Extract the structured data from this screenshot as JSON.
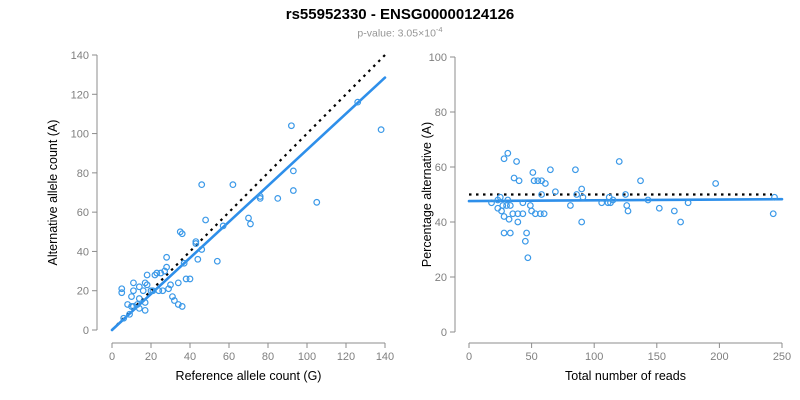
{
  "header": {
    "title": "rs55952330 - ENSG00000124126",
    "subtitle_base": "p-value: 3.05×10",
    "subtitle_exponent": "-4"
  },
  "colors": {
    "point": "#3B99E8",
    "fit_line": "#2E8FEA",
    "reference_line": "#000000",
    "axis": "#8C8C8C",
    "tick_label": "#7F7F7F",
    "axis_label": "#000000",
    "subtitle": "#969696"
  },
  "chart_data": [
    {
      "type": "scatter",
      "panel": "left",
      "xlabel": "Reference allele count (G)",
      "ylabel": "Alternative allele count (A)",
      "xlim": [
        0,
        140
      ],
      "ylim": [
        0,
        140
      ],
      "xticks": [
        0,
        20,
        40,
        60,
        80,
        100,
        120,
        140
      ],
      "yticks": [
        0,
        20,
        40,
        60,
        80,
        100,
        120,
        140
      ],
      "grid": false,
      "identity_line": {
        "style": "dotted",
        "x": [
          0,
          140
        ],
        "y": [
          0,
          140
        ]
      },
      "fit_line": {
        "style": "solid",
        "x": [
          0,
          140
        ],
        "y": [
          0,
          128.5
        ]
      },
      "points": [
        [
          5,
          21
        ],
        [
          5,
          19
        ],
        [
          11,
          24
        ],
        [
          14,
          22
        ],
        [
          11,
          20
        ],
        [
          16,
          20
        ],
        [
          10,
          17
        ],
        [
          14,
          16
        ],
        [
          17,
          14
        ],
        [
          13,
          13
        ],
        [
          8,
          13
        ],
        [
          11,
          12
        ],
        [
          14,
          11
        ],
        [
          17,
          10
        ],
        [
          10,
          12
        ],
        [
          9,
          8
        ],
        [
          6,
          6
        ],
        [
          28,
          37
        ],
        [
          44,
          36
        ],
        [
          54,
          35
        ],
        [
          37,
          34
        ],
        [
          28,
          32
        ],
        [
          27,
          30
        ],
        [
          23,
          29
        ],
        [
          25,
          29
        ],
        [
          22,
          28
        ],
        [
          18,
          28
        ],
        [
          38,
          26
        ],
        [
          40,
          26
        ],
        [
          34,
          24
        ],
        [
          17,
          24
        ],
        [
          18,
          23
        ],
        [
          30,
          23
        ],
        [
          20,
          20
        ],
        [
          21,
          20
        ],
        [
          24,
          20
        ],
        [
          26,
          20
        ],
        [
          29,
          21
        ],
        [
          31,
          17
        ],
        [
          32,
          15
        ],
        [
          34,
          13
        ],
        [
          36,
          12
        ],
        [
          35,
          50
        ],
        [
          36,
          49
        ],
        [
          43,
          45
        ],
        [
          43,
          44
        ],
        [
          46,
          41
        ],
        [
          48,
          56
        ],
        [
          57,
          53
        ],
        [
          46,
          74
        ],
        [
          62,
          74
        ],
        [
          70,
          57
        ],
        [
          71,
          54
        ],
        [
          76,
          68
        ],
        [
          76,
          67
        ],
        [
          85,
          67
        ],
        [
          93,
          81
        ],
        [
          93,
          71
        ],
        [
          105,
          65
        ],
        [
          92,
          104
        ],
        [
          126,
          116
        ],
        [
          138,
          102
        ]
      ]
    },
    {
      "type": "scatter",
      "panel": "right",
      "xlabel": "Total number of reads",
      "ylabel": "Percentage alternative (A)",
      "xlim": [
        0,
        250
      ],
      "ylim": [
        0,
        100
      ],
      "xticks": [
        0,
        50,
        100,
        150,
        200,
        250
      ],
      "yticks": [
        0,
        20,
        40,
        60,
        80,
        100
      ],
      "grid": false,
      "identity_line": {
        "style": "dotted",
        "x": [
          0,
          242
        ],
        "y": [
          50,
          50
        ]
      },
      "fit_line": {
        "style": "solid",
        "x": [
          0,
          250
        ],
        "y": [
          47.6,
          48.3
        ]
      },
      "points": [
        [
          31,
          65
        ],
        [
          28,
          63
        ],
        [
          38,
          62
        ],
        [
          120,
          62
        ],
        [
          51,
          58
        ],
        [
          65,
          59
        ],
        [
          85,
          59
        ],
        [
          36,
          56
        ],
        [
          40,
          55
        ],
        [
          52,
          55
        ],
        [
          55,
          55
        ],
        [
          58,
          55
        ],
        [
          61,
          54
        ],
        [
          137,
          55
        ],
        [
          197,
          54
        ],
        [
          90,
          52
        ],
        [
          86,
          50
        ],
        [
          125,
          50
        ],
        [
          69,
          51
        ],
        [
          58,
          50
        ],
        [
          25,
          49
        ],
        [
          31,
          48
        ],
        [
          23,
          48
        ],
        [
          112,
          49
        ],
        [
          115,
          48
        ],
        [
          143,
          48
        ],
        [
          175,
          47
        ],
        [
          244,
          49
        ],
        [
          18,
          47
        ],
        [
          43,
          47
        ],
        [
          27,
          46
        ],
        [
          33,
          46
        ],
        [
          49,
          46
        ],
        [
          30,
          46
        ],
        [
          81,
          46
        ],
        [
          91,
          49
        ],
        [
          106,
          47
        ],
        [
          111,
          47
        ],
        [
          113,
          47
        ],
        [
          126,
          46
        ],
        [
          152,
          45
        ],
        [
          164,
          44
        ],
        [
          127,
          44
        ],
        [
          23,
          45
        ],
        [
          26,
          44
        ],
        [
          50,
          44
        ],
        [
          35,
          43
        ],
        [
          39,
          43
        ],
        [
          43,
          43
        ],
        [
          53,
          43
        ],
        [
          57,
          43
        ],
        [
          60,
          43
        ],
        [
          28,
          42
        ],
        [
          32,
          41
        ],
        [
          39,
          40
        ],
        [
          90,
          40
        ],
        [
          169,
          40
        ],
        [
          243,
          43
        ],
        [
          28,
          36
        ],
        [
          33,
          36
        ],
        [
          46,
          36
        ],
        [
          45,
          33
        ],
        [
          47,
          27
        ]
      ]
    }
  ]
}
